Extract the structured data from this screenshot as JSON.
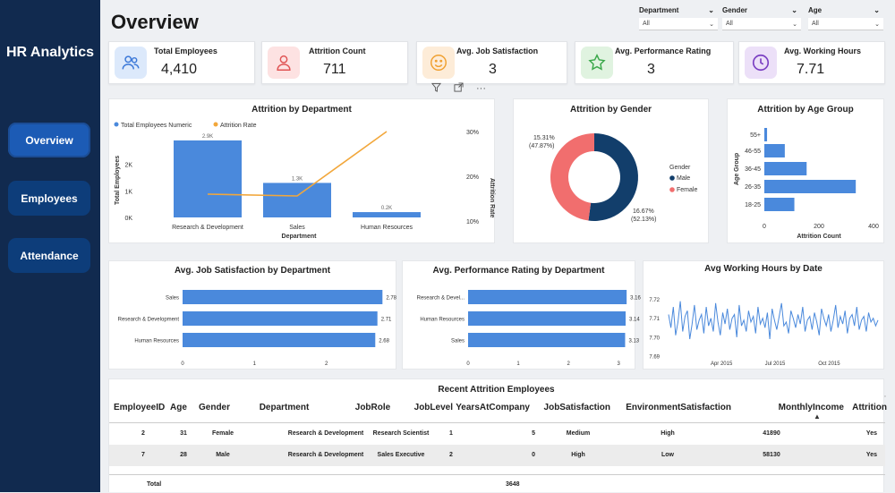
{
  "sidebar": {
    "brand": "HR Analytics",
    "nav": [
      {
        "label": "Overview",
        "active": true
      },
      {
        "label": "Employees",
        "active": false
      },
      {
        "label": "Attendance",
        "active": false
      }
    ]
  },
  "header": {
    "title": "Overview",
    "filters": [
      {
        "label": "Department",
        "value": "All"
      },
      {
        "label": "Gender",
        "value": "All"
      },
      {
        "label": "Age",
        "value": "All"
      }
    ]
  },
  "kpis": [
    {
      "label": "Total Employees",
      "value": "4,410",
      "icon": "users-icon",
      "color": "#dce9fb"
    },
    {
      "label": "Attrition Count",
      "value": "711",
      "icon": "person-icon",
      "color": "#fde2e2"
    },
    {
      "label": "Avg. Job Satisfaction",
      "value": "3",
      "icon": "smile-icon",
      "color": "#fdecd8"
    },
    {
      "label": "Avg. Performance Rating",
      "value": "3",
      "icon": "star-icon",
      "color": "#e0f3e0"
    },
    {
      "label": "Avg. Working Hours",
      "value": "7.71",
      "icon": "clock-icon",
      "color": "#ece0f8"
    }
  ],
  "colors": {
    "bar": "#4a89dc",
    "line": "#f2a73b",
    "male": "#123e6b",
    "female": "#f16e6e",
    "sidebar": "#112a4f"
  },
  "chart_data": [
    {
      "type": "bar",
      "title": "Attrition by Department",
      "legend": [
        "Total Employees Numeric",
        "Attrition Rate"
      ],
      "categories": [
        "Research & Development",
        "Sales",
        "Human Resources"
      ],
      "series": [
        {
          "name": "Total Employees Numeric",
          "values": [
            2900,
            1300,
            200
          ]
        },
        {
          "name": "Attrition Rate",
          "values": [
            16,
            15.6,
            30
          ]
        }
      ],
      "data_labels": [
        "2.9K",
        "1.3K",
        "0.2K"
      ],
      "xlabel": "Department",
      "ylabel": "Total Employees",
      "y2label": "Attrition Rate",
      "yticks": [
        "0K",
        "1K",
        "2K"
      ],
      "y2ticks": [
        "10%",
        "20%",
        "30%"
      ],
      "ylim": [
        0,
        3100
      ],
      "y2lim": [
        10,
        30
      ]
    },
    {
      "type": "pie",
      "title": "Attrition by Gender",
      "legend_title": "Gender",
      "slices": [
        {
          "name": "Male",
          "value": 52.13,
          "label": "16.67%\n(52.13%)"
        },
        {
          "name": "Female",
          "value": 47.87,
          "label": "15.31%\n(47.87%)"
        }
      ]
    },
    {
      "type": "bar",
      "title": "Attrition by Age Group",
      "categories": [
        "55+",
        "46-55",
        "36-45",
        "26-35",
        "18-25"
      ],
      "values": [
        10,
        75,
        155,
        335,
        110
      ],
      "xlabel": "Attrition Count",
      "ylabel": "Age Group",
      "xticks": [
        "0",
        "200",
        "400"
      ],
      "xlim": [
        0,
        400
      ]
    },
    {
      "type": "bar",
      "title": "Avg. Job Satisfaction by Department",
      "categories": [
        "Sales",
        "Research & Development",
        "Human Resources"
      ],
      "values": [
        2.78,
        2.71,
        2.68
      ],
      "labels": [
        "2.78",
        "2.71",
        "2.68"
      ],
      "xticks": [
        "0",
        "1",
        "2"
      ],
      "xlim": [
        0,
        3
      ]
    },
    {
      "type": "bar",
      "title": "Avg. Performance Rating by Department",
      "categories": [
        "Research & Devel...",
        "Human Resources",
        "Sales"
      ],
      "values": [
        3.16,
        3.14,
        3.13
      ],
      "labels": [
        "3.16",
        "3.14",
        "3.13"
      ],
      "xticks": [
        "0",
        "1",
        "2",
        "3"
      ],
      "xlim": [
        0,
        3.3
      ]
    },
    {
      "type": "line",
      "title": "Avg Working Hours by Date",
      "yticks": [
        "7.72",
        "7.71",
        "7.70",
        "7.69"
      ],
      "ylim": [
        7.69,
        7.725
      ],
      "xticks": [
        "Apr 2015",
        "Jul 2015",
        "Oct 2015"
      ],
      "x": [
        "2015-01-01",
        "2015-01-05",
        "2015-01-09",
        "2015-01-13",
        "2015-01-17",
        "2015-01-21",
        "2015-01-25",
        "2015-01-29",
        "2015-02-02",
        "2015-02-06",
        "2015-02-10",
        "2015-02-14",
        "2015-02-18",
        "2015-02-22",
        "2015-02-26",
        "2015-03-02",
        "2015-03-06",
        "2015-03-10",
        "2015-03-14",
        "2015-03-18",
        "2015-03-22",
        "2015-03-26",
        "2015-03-30",
        "2015-04-03",
        "2015-04-07",
        "2015-04-11",
        "2015-04-15",
        "2015-04-19",
        "2015-04-23",
        "2015-04-27",
        "2015-05-01",
        "2015-05-05",
        "2015-05-09",
        "2015-05-13",
        "2015-05-17",
        "2015-05-21",
        "2015-05-25",
        "2015-05-29",
        "2015-06-02",
        "2015-06-06",
        "2015-06-10",
        "2015-06-14",
        "2015-06-18",
        "2015-06-22",
        "2015-06-26",
        "2015-06-30",
        "2015-07-04",
        "2015-07-08",
        "2015-07-12",
        "2015-07-16",
        "2015-07-20",
        "2015-07-24",
        "2015-07-28",
        "2015-08-01",
        "2015-08-05",
        "2015-08-09",
        "2015-08-13",
        "2015-08-17",
        "2015-08-21",
        "2015-08-25",
        "2015-08-29",
        "2015-09-02",
        "2015-09-06",
        "2015-09-10",
        "2015-09-14",
        "2015-09-18",
        "2015-09-22",
        "2015-09-26",
        "2015-09-30",
        "2015-10-04",
        "2015-10-08",
        "2015-10-12",
        "2015-10-16",
        "2015-10-20",
        "2015-10-24",
        "2015-10-28",
        "2015-11-01",
        "2015-11-05",
        "2015-11-09",
        "2015-11-13",
        "2015-11-17",
        "2015-11-21",
        "2015-11-25",
        "2015-11-29",
        "2015-12-03",
        "2015-12-07",
        "2015-12-11",
        "2015-12-15",
        "2015-12-19",
        "2015-12-23"
      ],
      "values": [
        7.712,
        7.705,
        7.716,
        7.701,
        7.708,
        7.719,
        7.703,
        7.711,
        7.714,
        7.699,
        7.707,
        7.717,
        7.704,
        7.709,
        7.712,
        7.702,
        7.716,
        7.706,
        7.71,
        7.703,
        7.718,
        7.708,
        7.701,
        7.713,
        7.707,
        7.715,
        7.704,
        7.71,
        7.712,
        7.7,
        7.717,
        7.706,
        7.709,
        7.703,
        7.714,
        7.708,
        7.711,
        7.702,
        7.716,
        7.707,
        7.71,
        7.705,
        7.713,
        7.699,
        7.715,
        7.709,
        7.704,
        7.711,
        7.718,
        7.706,
        7.708,
        7.702,
        7.714,
        7.71,
        7.705,
        7.712,
        7.707,
        7.716,
        7.703,
        7.709,
        7.711,
        7.704,
        7.713,
        7.708,
        7.701,
        7.715,
        7.71,
        7.706,
        7.712,
        7.703,
        7.709,
        7.717,
        7.705,
        7.711,
        7.707,
        7.714,
        7.702,
        7.71,
        7.712,
        7.706,
        7.716,
        7.704,
        7.709,
        7.711,
        7.703,
        7.713,
        7.708,
        7.71,
        7.706,
        7.709
      ]
    }
  ],
  "table": {
    "title": "Recent Attrition Employees",
    "columns": [
      "EmployeeID",
      "Age",
      "Gender",
      "Department",
      "JobRole",
      "JobLevel",
      "YearsAtCompany",
      "JobSatisfaction",
      "EnvironmentSatisfaction",
      "MonthlyIncome",
      "Attrition"
    ],
    "rows": [
      [
        "2",
        "31",
        "Female",
        "Research & Development",
        "Research Scientist",
        "1",
        "5",
        "Medium",
        "High",
        "41890",
        "Yes"
      ],
      [
        "7",
        "28",
        "Male",
        "Research & Development",
        "Sales Executive",
        "2",
        "0",
        "High",
        "Low",
        "58130",
        "Yes"
      ]
    ],
    "total_label": "Total",
    "total_value": "3648"
  },
  "toolbar_icons": [
    "filter-icon",
    "expand-icon",
    "more-icon"
  ]
}
